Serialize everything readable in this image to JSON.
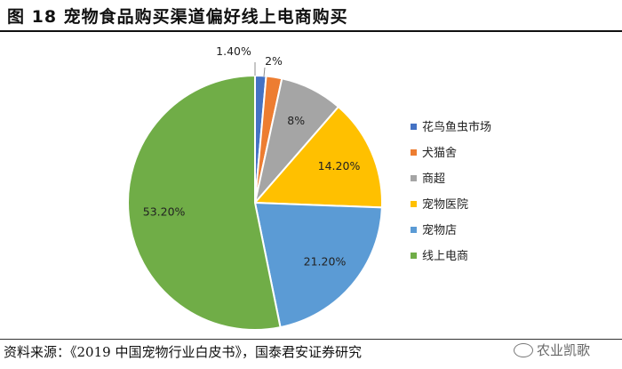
{
  "figure": {
    "title": "图 18 宠物食品购买渠道偏好线上电商购买",
    "source": "资料来源：《2019 中国宠物行业白皮书》，国泰君安证券研究",
    "watermark": "农业凯歌",
    "watermark_icon": "wechat-icon"
  },
  "chart_data": {
    "type": "pie",
    "title": "",
    "legend_position": "right",
    "categories": [
      "花鸟鱼虫市场",
      "犬猫舍",
      "商超",
      "宠物医院",
      "宠物店",
      "线上电商"
    ],
    "values": [
      1.4,
      2,
      8,
      14.2,
      21.2,
      53.2
    ],
    "labels": [
      "1.40%",
      "2%",
      "8%",
      "14.20%",
      "21.20%",
      "53.20%"
    ],
    "colors": [
      "#4472C4",
      "#ED7D31",
      "#A5A5A5",
      "#FFC000",
      "#5B9BD5",
      "#70AD47"
    ]
  }
}
